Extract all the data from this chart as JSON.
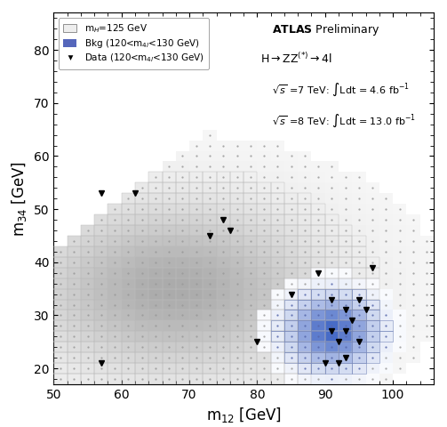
{
  "xlabel": "m$_{12}$ [GeV]",
  "ylabel": "m$_{34}$ [GeV]",
  "xlim": [
    50,
    106
  ],
  "ylim": [
    17,
    87
  ],
  "xticks": [
    50,
    60,
    70,
    80,
    90,
    100
  ],
  "yticks": [
    20,
    30,
    40,
    50,
    60,
    70,
    80
  ],
  "legend_labels": [
    "m$_H$=125 GeV",
    "Bkg (120<m$_{4l}$<130 GeV)",
    "Data (120<m$_{4l}$<130 GeV)"
  ],
  "data_points": [
    [
      57,
      21
    ],
    [
      57,
      53
    ],
    [
      62,
      53
    ],
    [
      73,
      45
    ],
    [
      75,
      48
    ],
    [
      76,
      46
    ],
    [
      80,
      25
    ],
    [
      85,
      34
    ],
    [
      89,
      38
    ],
    [
      90,
      21
    ],
    [
      91,
      33
    ],
    [
      91,
      27
    ],
    [
      92,
      25
    ],
    [
      92,
      21
    ],
    [
      93,
      31
    ],
    [
      93,
      27
    ],
    [
      93,
      22
    ],
    [
      94,
      29
    ],
    [
      95,
      25
    ],
    [
      95,
      33
    ],
    [
      96,
      31
    ],
    [
      97,
      39
    ]
  ],
  "bin_width": 2,
  "signal_peak_m12": 68,
  "signal_peak_m34": 35,
  "signal_sigma_m12": 200,
  "signal_sigma_m34": 110,
  "bkg_peak_m12": 91,
  "bkg_peak_m34": 27,
  "bkg_sigma_m12": 16,
  "bkg_sigma_m34": 18
}
